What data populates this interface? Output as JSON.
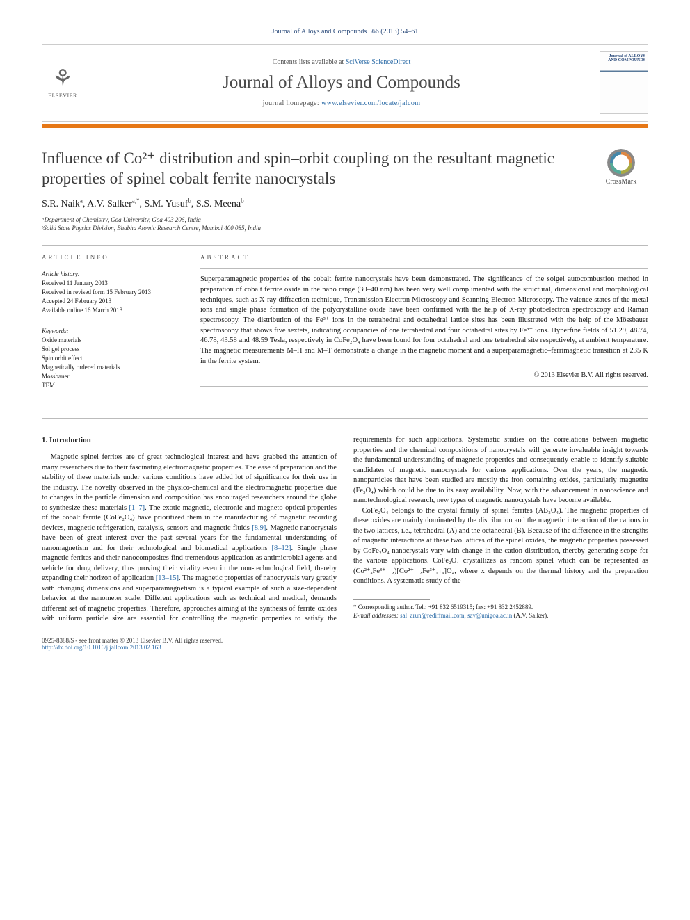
{
  "header": {
    "citation": "Journal of Alloys and Compounds 566 (2013) 54–61",
    "contents_prefix": "Contents lists available at ",
    "contents_link": "SciVerse ScienceDirect",
    "journal_name": "Journal of Alloys and Compounds",
    "homepage_prefix": "journal homepage: ",
    "homepage_link": "www.elsevier.com/locate/jalcom",
    "elsevier_label": "ELSEVIER",
    "cover_label": "Journal of ALLOYS AND COMPOUNDS"
  },
  "crossmark": {
    "label": "CrossMark"
  },
  "title": "Influence of Co²⁺ distribution and spin–orbit coupling on the resultant magnetic properties of spinel cobalt ferrite nanocrystals",
  "authors_html": "S.R. Naik<sup>a</sup>, A.V. Salker<sup>a,*</sup>, S.M. Yusuf<sup>b</sup>, S.S. Meena<sup>b</sup>",
  "affiliations": [
    "ᵃDepartment of Chemistry, Goa University, Goa 403 206, India",
    "ᵇSolid State Physics Division, Bhabha Atomic Research Centre, Mumbai 400 085, India"
  ],
  "article_info": {
    "header": "article info",
    "history_label": "Article history:",
    "history": [
      "Received 11 January 2013",
      "Received in revised form 15 February 2013",
      "Accepted 24 February 2013",
      "Available online 16 March 2013"
    ],
    "keywords_label": "Keywords:",
    "keywords": [
      "Oxide materials",
      "Sol gel process",
      "Spin orbit effect",
      "Magnetically ordered materials",
      "Mossbauer",
      "TEM"
    ]
  },
  "abstract": {
    "header": "abstract",
    "text": "Superparamagnetic properties of the cobalt ferrite nanocrystals have been demonstrated. The significance of the solgel autocombustion method in preparation of cobalt ferrite oxide in the nano range (30–40 nm) has been very well complimented with the structural, dimensional and morphological techniques, such as X-ray diffraction technique, Transmission Electron Microscopy and Scanning Electron Microscopy. The valence states of the metal ions and single phase formation of the polycrystalline oxide have been confirmed with the help of X-ray photoelectron spectroscopy and Raman spectroscopy. The distribution of the Fe³⁺ ions in the tetrahedral and octahedral lattice sites has been illustrated with the help of the Mössbauer spectroscopy that shows five sextets, indicating occupancies of one tetrahedral and four octahedral sites by Fe³⁺ ions. Hyperfine fields of 51.29, 48.74, 46.78, 43.58 and 48.59 Tesla, respectively in CoFe₂O₄ have been found for four octahedral and one tetrahedral site respectively, at ambient temperature. The magnetic measurements M–H and M–T demonstrate a change in the magnetic moment and a superparamagnetic–ferrimagnetic transition at 235 K in the ferrite system.",
    "copyright": "© 2013 Elsevier B.V. All rights reserved."
  },
  "section1": {
    "heading": "1. Introduction",
    "p1": "Magnetic spinel ferrites are of great technological interest and have grabbed the attention of many researchers due to their fascinating electromagnetic properties. The ease of preparation and the stability of these materials under various conditions have added lot of significance for their use in the industry. The novelty observed in the physico-chemical and the electromagnetic properties due to changes in the particle dimension and composition has encouraged researchers around the globe to synthesize these materials [1–7]. The exotic magnetic, electronic and magneto-optical properties of the cobalt ferrite (CoFe₂O₄) have prioritized them in the manufacturing of magnetic recording devices, magnetic refrigeration, catalysis, sensors and magnetic fluids [8,9]. Magnetic nanocrystals have been of great interest over the past several years for the fundamental understanding of nanomagnetism and for their technological and biomedical applications [8–12]. Single phase magnetic ferrites and their nanocomposites find tremendous application as antimicrobial agents and vehicle for drug delivery, thus proving their vitality even in the non-technological field, thereby expanding their horizon of application [13–15]. The magnetic properties of nanocrystals vary greatly with changing dimensions and superparamagnetism is a typical example of such a size-dependent behavior at the nanometer scale. Different applications such as technical and medical, demands different set of magnetic properties. Therefore, approaches aiming at the synthesis of ferrite oxides with uniform particle size are essential for controlling the magnetic properties to satisfy the requirements for such applications. Systematic studies on the correlations between magnetic properties and the chemical compositions of nanocrystals will generate invaluable insight towards the fundamental understanding of magnetic properties and consequently enable to identify suitable candidates of magnetic nanocrystals for various applications. Over the years, the magnetic nanoparticles that have been studied are mostly the iron containing oxides, particularly magnetite (Fe₃O₄) which could be due to its easy availability. Now, with the advancement in nanoscience and nanotechnological research, new types of magnetic nanocrystals have become available.",
    "p2": "CoFe₂O₄ belongs to the crystal family of spinel ferrites (AB₂O₄). The magnetic properties of these oxides are mainly dominated by the distribution and the magnetic interaction of the cations in the two lattices, i.e., tetrahedral (A) and the octahedral (B). Because of the difference in the strengths of magnetic interactions at these two lattices of the spinel oxides, the magnetic properties possessed by CoFe₂O₄ nanocrystals vary with change in the cation distribution, thereby generating scope for the various applications. CoFe₂O₄ crystallizes as random spinel which can be represented as (Co²⁺ₓFe³⁺₁₋ₓ)[Co²⁺₁₋ₓFe³⁺₁₊ₓ]O₄, where x depends on the thermal history and the preparation conditions. A systematic study of the"
  },
  "footnotes": {
    "corr": "* Corresponding author. Tel.: +91 832 6519315; fax: +91 832 2452889.",
    "email_label": "E-mail addresses:",
    "emails": "sal_arun@rediffmail.com, sav@unigoa.ac.in",
    "email_tail": " (A.V. Salker)."
  },
  "footer": {
    "line1": "0925-8388/$ - see front matter © 2013 Elsevier B.V. All rights reserved.",
    "doi": "http://dx.doi.org/10.1016/j.jallcom.2013.02.163"
  },
  "refs": {
    "r1_7": "[1–7]",
    "r8_9": "[8,9]",
    "r8_12": "[8–12]",
    "r13_15": "[13–15]"
  },
  "colors": {
    "accent_orange": "#e67817",
    "link_blue": "#2a6aa6",
    "header_blue": "#2a4a7a"
  }
}
